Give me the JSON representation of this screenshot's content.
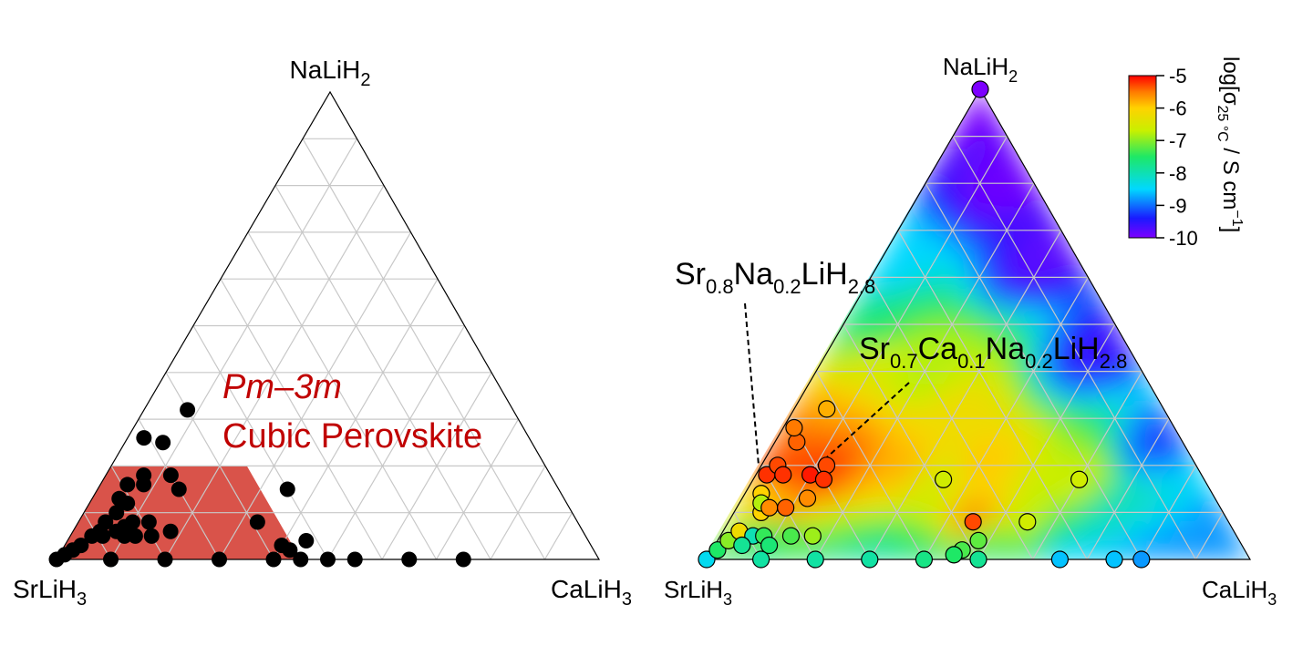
{
  "chart_data": [
    {
      "type": "scatter",
      "subtype": "ternary",
      "vertices": {
        "top": {
          "base": "NaLiH",
          "sub": "2"
        },
        "left": {
          "base": "SrLiH",
          "sub": "3"
        },
        "right": {
          "base": "CaLiH",
          "sub": "3"
        }
      },
      "grid_divisions": 10,
      "region": {
        "title": "Pm–3m",
        "subtitle": "Cubic Perovskite",
        "color": "#d9534a",
        "polygon_ca_na": [
          [
            0,
            0
          ],
          [
            0.45,
            0
          ],
          [
            0.25,
            0.2
          ],
          [
            0,
            0.2
          ]
        ]
      },
      "point_color": "#000000",
      "points_ca_na": [
        [
          0,
          0
        ],
        [
          0.01,
          0.01
        ],
        [
          0.02,
          0.02
        ],
        [
          0.03,
          0.03
        ],
        [
          0.04,
          0.05
        ],
        [
          0.05,
          0.06
        ],
        [
          0.05,
          0.08
        ],
        [
          0.06,
          0.1
        ],
        [
          0.05,
          0.13
        ],
        [
          0.07,
          0.12
        ],
        [
          0.05,
          0.16
        ],
        [
          0.08,
          0.16
        ],
        [
          0.07,
          0.18
        ],
        [
          0.12,
          0.18
        ],
        [
          0.15,
          0.15
        ],
        [
          0.06,
          0.05
        ],
        [
          0.08,
          0.06
        ],
        [
          0.09,
          0.07
        ],
        [
          0.1,
          0.05
        ],
        [
          0.1,
          0.08
        ],
        [
          0.12,
          0.05
        ],
        [
          0.13,
          0.08
        ],
        [
          0.15,
          0.05
        ],
        [
          0.18,
          0.06
        ],
        [
          0.07,
          0.25
        ],
        [
          0.03,
          0.26
        ],
        [
          0.08,
          0.32
        ],
        [
          0.1,
          0
        ],
        [
          0.2,
          0
        ],
        [
          0.3,
          0
        ],
        [
          0.4,
          0
        ],
        [
          0.45,
          0
        ],
        [
          0.5,
          0
        ],
        [
          0.4,
          0.03
        ],
        [
          0.42,
          0.02
        ],
        [
          0.44,
          0.04
        ],
        [
          0.55,
          0
        ],
        [
          0.65,
          0
        ],
        [
          0.75,
          0
        ],
        [
          0.35,
          0.15
        ],
        [
          0.33,
          0.08
        ]
      ]
    },
    {
      "type": "heatmap",
      "subtype": "ternary-contour",
      "vertices": {
        "top": {
          "base": "NaLiH",
          "sub": "2"
        },
        "left": {
          "base": "SrLiH",
          "sub": "3"
        },
        "right": {
          "base": "CaLiH",
          "sub": "3"
        }
      },
      "grid_divisions": 10,
      "colorbar": {
        "label_base": "log[σ",
        "label_sub": "25 °C",
        "label_mid": " / S cm",
        "label_sup": "−1",
        "label_end": "]",
        "ticks": [
          "-5",
          "-6",
          "-7",
          "-8",
          "-9",
          "-10"
        ],
        "range": [
          -10,
          -5
        ]
      },
      "annotations": [
        {
          "base1": "Sr",
          "sub1": "0.8",
          "base2": "Na",
          "sub2": "0.2",
          "base3": "LiH",
          "sub3": "2.8",
          "target_ca_na": [
            0.01,
            0.18
          ]
        },
        {
          "base1": "Sr",
          "sub1": "0.7",
          "base2": "Ca",
          "sub2": "0.1",
          "base3": "Na",
          "sub3": "0.2",
          "base4": "LiH",
          "sub4": "2.8",
          "target_ca_na": [
            0.1,
            0.18
          ]
        }
      ],
      "points": [
        {
          "ca": 0,
          "na": 0,
          "v": -8.4
        },
        {
          "ca": 0.01,
          "na": 0.02,
          "v": -7.5
        },
        {
          "ca": 0.02,
          "na": 0.04,
          "v": -7.0
        },
        {
          "ca": 0.03,
          "na": 0.06,
          "v": -6.2
        },
        {
          "ca": 0.05,
          "na": 0.1,
          "v": -6.0
        },
        {
          "ca": 0.06,
          "na": 0.05,
          "v": -8.0
        },
        {
          "ca": 0.05,
          "na": 0.03,
          "v": -7.8
        },
        {
          "ca": 0.08,
          "na": 0.05,
          "v": -7.4
        },
        {
          "ca": 0.1,
          "na": 0.03,
          "v": -7.6
        },
        {
          "ca": 0.13,
          "na": 0.05,
          "v": -7.3
        },
        {
          "ca": 0.17,
          "na": 0.05,
          "v": -6.9
        },
        {
          "ca": 0.03,
          "na": 0.14,
          "v": -6.0
        },
        {
          "ca": 0.04,
          "na": 0.12,
          "v": -6.8
        },
        {
          "ca": 0.06,
          "na": 0.11,
          "v": -5.6
        },
        {
          "ca": 0.09,
          "na": 0.11,
          "v": -5.4
        },
        {
          "ca": 0.12,
          "na": 0.13,
          "v": -5.6
        },
        {
          "ca": 0.02,
          "na": 0.18,
          "v": -5.2
        },
        {
          "ca": 0.03,
          "na": 0.2,
          "v": -5.3
        },
        {
          "ca": 0.05,
          "na": 0.18,
          "v": -5.2
        },
        {
          "ca": 0.1,
          "na": 0.18,
          "v": -5.1
        },
        {
          "ca": 0.12,
          "na": 0.2,
          "v": -5.3
        },
        {
          "ca": 0.13,
          "na": 0.17,
          "v": -5.2
        },
        {
          "ca": 0.04,
          "na": 0.25,
          "v": -5.4
        },
        {
          "ca": 0.02,
          "na": 0.28,
          "v": -5.5
        },
        {
          "ca": 0.06,
          "na": 0.32,
          "v": -5.8
        },
        {
          "ca": 0.35,
          "na": 0.17,
          "v": -6.6
        },
        {
          "ca": 0.45,
          "na": 0.08,
          "v": -5.3
        },
        {
          "ca": 0.55,
          "na": 0.08,
          "v": -6.6
        },
        {
          "ca": 0.6,
          "na": 0.17,
          "v": -6.6
        },
        {
          "ca": 0.48,
          "na": 0.04,
          "v": -7.2
        },
        {
          "ca": 0.46,
          "na": 0.02,
          "v": -7.3
        },
        {
          "ca": 0.45,
          "na": 0.01,
          "v": -7.5
        },
        {
          "ca": 0.1,
          "na": 0,
          "v": -7.9
        },
        {
          "ca": 0.2,
          "na": 0,
          "v": -7.9
        },
        {
          "ca": 0.3,
          "na": 0,
          "v": -7.9
        },
        {
          "ca": 0.4,
          "na": 0,
          "v": -7.7
        },
        {
          "ca": 0.5,
          "na": 0,
          "v": -7.8
        },
        {
          "ca": 0.65,
          "na": 0,
          "v": -8.6
        },
        {
          "ca": 0.75,
          "na": 0,
          "v": -8.6
        },
        {
          "ca": 0.8,
          "na": 0,
          "v": -8.8
        },
        {
          "ca": 0,
          "na": 1,
          "v": -10
        }
      ]
    }
  ]
}
